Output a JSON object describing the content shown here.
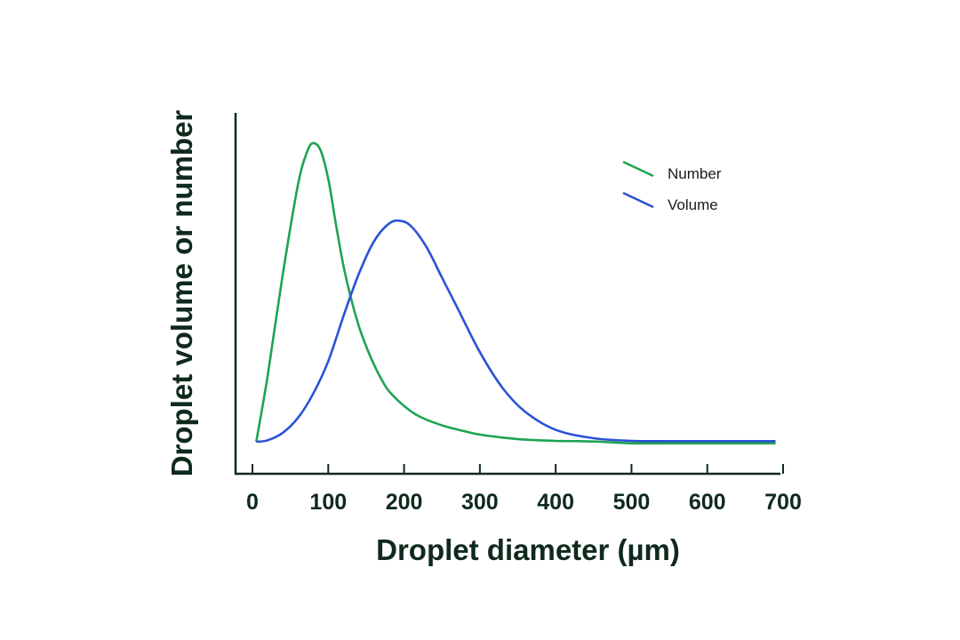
{
  "chart_data": {
    "type": "line",
    "title": "",
    "xlabel": "Droplet diameter (µm)",
    "ylabel": "Droplet volume or number",
    "xlim": [
      0,
      700
    ],
    "ylim": [
      0,
      1
    ],
    "x_ticks": [
      0,
      100,
      200,
      300,
      400,
      500,
      600,
      700
    ],
    "x_tick_labels": [
      "0",
      "100",
      "200",
      "300",
      "400",
      "500",
      "600",
      "700"
    ],
    "grid": false,
    "legend_position": "top-right",
    "series": [
      {
        "name": "Number",
        "color": "#1fa352",
        "x": [
          5,
          20,
          40,
          60,
          72,
          80,
          90,
          100,
          110,
          120,
          130,
          140,
          150,
          160,
          170,
          180,
          200,
          220,
          250,
          280,
          300,
          330,
          360,
          400,
          430,
          460,
          500,
          550,
          600,
          650,
          690
        ],
        "y": [
          0.0,
          0.22,
          0.56,
          0.86,
          0.97,
          1.0,
          0.975,
          0.88,
          0.73,
          0.59,
          0.48,
          0.39,
          0.32,
          0.26,
          0.21,
          0.17,
          0.12,
          0.085,
          0.055,
          0.035,
          0.024,
          0.014,
          0.007,
          0.003,
          0.002,
          0.0,
          -0.005,
          -0.005,
          -0.005,
          -0.005,
          -0.005
        ]
      },
      {
        "name": "Volume",
        "color": "#2a52d6",
        "x": [
          5,
          20,
          40,
          60,
          80,
          100,
          120,
          140,
          160,
          180,
          195,
          210,
          230,
          250,
          270,
          300,
          330,
          360,
          400,
          450,
          500,
          550,
          600,
          650,
          690
        ],
        "y": [
          0.0,
          0.005,
          0.03,
          0.08,
          0.16,
          0.27,
          0.42,
          0.56,
          0.67,
          0.73,
          0.74,
          0.72,
          0.65,
          0.55,
          0.45,
          0.3,
          0.18,
          0.1,
          0.04,
          0.012,
          0.003,
          0.002,
          0.002,
          0.002,
          0.002
        ]
      }
    ]
  }
}
